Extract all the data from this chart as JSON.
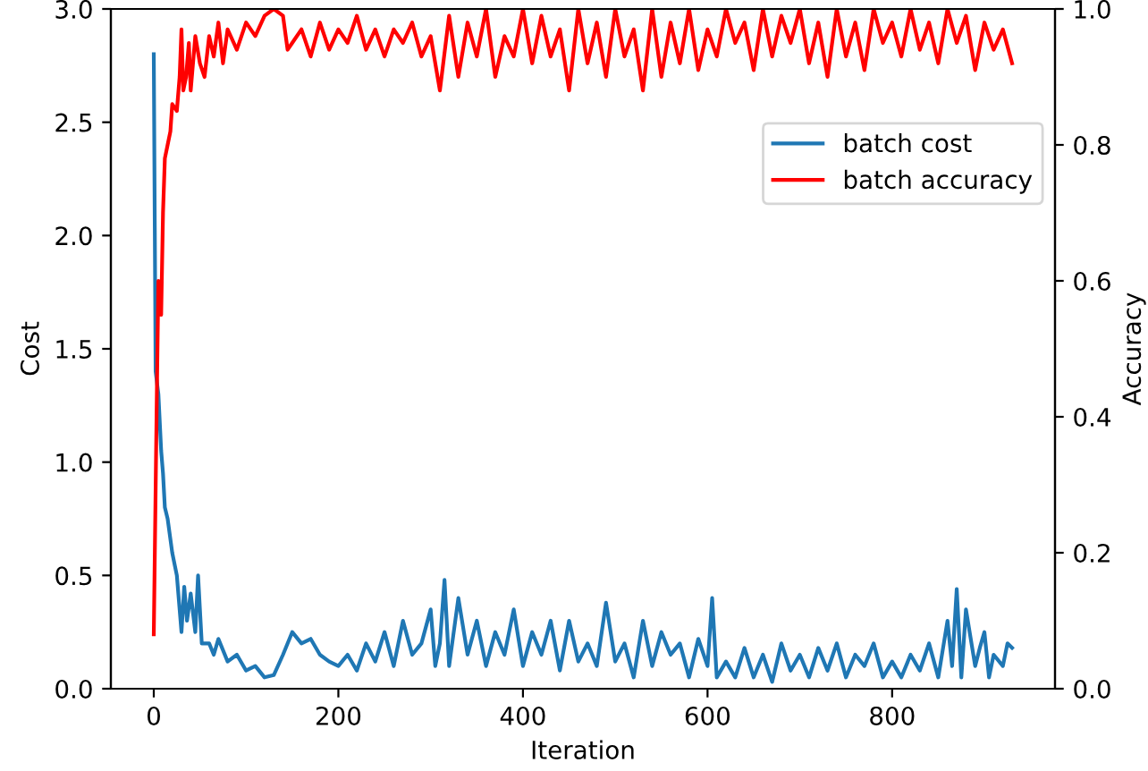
{
  "chart_data": {
    "type": "line",
    "xlabel": "Iteration",
    "ylabel": "Cost",
    "y2label": "Accuracy",
    "xlim": [
      -46.5,
      976.5
    ],
    "xticks": [
      0,
      200,
      400,
      600,
      800
    ],
    "ylim": [
      0,
      3
    ],
    "yticks": [
      {
        "value": 0,
        "label": "0.0"
      },
      0.5,
      {
        "value": 1,
        "label": "1.0"
      },
      1.5,
      {
        "value": 2,
        "label": "2.0"
      },
      2.5,
      {
        "value": 3,
        "label": "3.0"
      }
    ],
    "y2lim": [
      0,
      1
    ],
    "y2ticks": [
      {
        "value": 0,
        "label": "0.0"
      },
      0.2,
      0.4,
      0.6,
      0.8,
      {
        "value": 1,
        "label": "1.0"
      }
    ],
    "legend": "top right",
    "grid": false,
    "series": [
      {
        "name": "batch cost",
        "color": "#1f77b4",
        "x": [
          0,
          2,
          5,
          8,
          10,
          12,
          15,
          20,
          25,
          28,
          30,
          33,
          36,
          40,
          45,
          48,
          52,
          60,
          65,
          70,
          80,
          90,
          100,
          110,
          120,
          130,
          140,
          150,
          160,
          170,
          180,
          190,
          200,
          210,
          220,
          230,
          240,
          250,
          260,
          270,
          280,
          290,
          300,
          305,
          310,
          315,
          320,
          330,
          340,
          350,
          360,
          370,
          380,
          390,
          400,
          410,
          420,
          430,
          440,
          450,
          460,
          470,
          480,
          490,
          500,
          510,
          520,
          530,
          540,
          550,
          560,
          570,
          580,
          590,
          600,
          605,
          610,
          620,
          630,
          640,
          650,
          660,
          670,
          680,
          690,
          700,
          710,
          720,
          730,
          740,
          750,
          760,
          770,
          780,
          790,
          800,
          810,
          820,
          830,
          840,
          850,
          860,
          865,
          870,
          875,
          880,
          890,
          895,
          900,
          905,
          910,
          920,
          925,
          930
        ],
        "values": [
          2.8,
          1.4,
          1.3,
          1.05,
          0.95,
          0.8,
          0.75,
          0.6,
          0.5,
          0.35,
          0.25,
          0.45,
          0.3,
          0.42,
          0.25,
          0.5,
          0.2,
          0.2,
          0.15,
          0.22,
          0.12,
          0.15,
          0.08,
          0.1,
          0.05,
          0.06,
          0.15,
          0.25,
          0.2,
          0.22,
          0.15,
          0.12,
          0.1,
          0.15,
          0.08,
          0.2,
          0.12,
          0.25,
          0.1,
          0.3,
          0.15,
          0.2,
          0.35,
          0.1,
          0.2,
          0.48,
          0.1,
          0.4,
          0.15,
          0.3,
          0.1,
          0.25,
          0.15,
          0.35,
          0.1,
          0.25,
          0.15,
          0.3,
          0.08,
          0.3,
          0.12,
          0.2,
          0.1,
          0.38,
          0.12,
          0.2,
          0.05,
          0.3,
          0.1,
          0.25,
          0.15,
          0.2,
          0.05,
          0.22,
          0.1,
          0.4,
          0.05,
          0.12,
          0.05,
          0.18,
          0.05,
          0.15,
          0.03,
          0.2,
          0.08,
          0.15,
          0.05,
          0.18,
          0.08,
          0.2,
          0.05,
          0.15,
          0.1,
          0.2,
          0.05,
          0.12,
          0.05,
          0.15,
          0.08,
          0.2,
          0.05,
          0.3,
          0.1,
          0.44,
          0.05,
          0.35,
          0.1,
          0.18,
          0.25,
          0.05,
          0.15,
          0.1,
          0.2,
          0.18
        ]
      },
      {
        "name": "batch accuracy",
        "color": "#ff0000",
        "axis": "y2",
        "x": [
          0,
          3,
          5,
          8,
          10,
          12,
          15,
          18,
          20,
          25,
          28,
          30,
          32,
          35,
          38,
          40,
          45,
          50,
          55,
          60,
          65,
          70,
          75,
          80,
          90,
          100,
          110,
          120,
          130,
          140,
          145,
          150,
          160,
          170,
          180,
          190,
          200,
          210,
          220,
          230,
          240,
          250,
          260,
          270,
          280,
          290,
          300,
          310,
          320,
          330,
          340,
          350,
          360,
          370,
          380,
          390,
          400,
          410,
          420,
          430,
          440,
          450,
          460,
          470,
          480,
          490,
          500,
          510,
          520,
          530,
          540,
          550,
          560,
          570,
          580,
          590,
          600,
          610,
          620,
          630,
          640,
          650,
          660,
          670,
          680,
          690,
          700,
          710,
          720,
          730,
          740,
          750,
          760,
          770,
          780,
          790,
          800,
          810,
          820,
          830,
          840,
          850,
          860,
          870,
          880,
          890,
          900,
          910,
          920,
          930
        ],
        "values": [
          0.08,
          0.4,
          0.6,
          0.55,
          0.7,
          0.78,
          0.8,
          0.82,
          0.86,
          0.85,
          0.9,
          0.97,
          0.88,
          0.9,
          0.95,
          0.88,
          0.96,
          0.92,
          0.9,
          0.96,
          0.93,
          0.98,
          0.92,
          0.97,
          0.94,
          0.98,
          0.96,
          0.99,
          1.0,
          0.99,
          0.94,
          0.95,
          0.97,
          0.93,
          0.98,
          0.94,
          0.97,
          0.95,
          0.99,
          0.94,
          0.97,
          0.93,
          0.97,
          0.95,
          0.98,
          0.93,
          0.96,
          0.88,
          0.99,
          0.9,
          0.98,
          0.93,
          1.0,
          0.9,
          0.96,
          0.93,
          1.0,
          0.92,
          0.99,
          0.93,
          0.97,
          0.88,
          1.0,
          0.92,
          0.98,
          0.9,
          1.0,
          0.93,
          0.97,
          0.88,
          1.0,
          0.9,
          0.98,
          0.92,
          1.0,
          0.91,
          0.97,
          0.93,
          1.0,
          0.95,
          0.98,
          0.91,
          1.0,
          0.93,
          0.99,
          0.95,
          1.0,
          0.92,
          0.98,
          0.9,
          1.0,
          0.93,
          0.98,
          0.91,
          1.0,
          0.95,
          0.98,
          0.93,
          1.0,
          0.94,
          0.98,
          0.92,
          1.0,
          0.95,
          0.99,
          0.91,
          0.98,
          0.94,
          0.97,
          0.92
        ]
      }
    ]
  }
}
